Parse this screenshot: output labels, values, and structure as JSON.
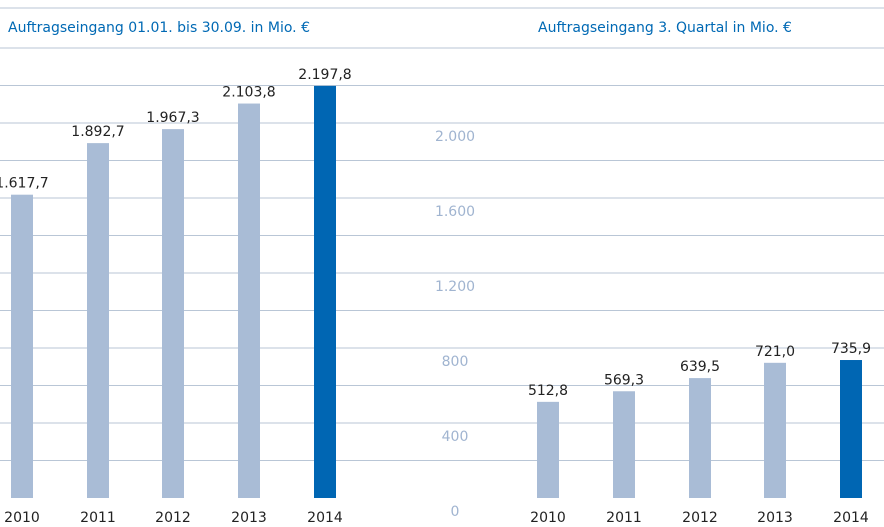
{
  "chart_data": [
    {
      "type": "bar",
      "title": "Auftragseingang 01.01. bis 30.09. in Mio. €",
      "categories": [
        "2010",
        "2011",
        "2012",
        "2013",
        "2014"
      ],
      "values": [
        1617.7,
        1892.7,
        1967.3,
        2103.8,
        2197.8
      ],
      "value_labels": [
        "1.617,7",
        "1.892,7",
        "1.967,3",
        "2.103,8",
        "2.197,8"
      ],
      "colors": [
        "#a9bcd6",
        "#a9bcd6",
        "#a9bcd6",
        "#a9bcd6",
        "#0066b3"
      ],
      "ylim": [
        0,
        2400
      ]
    },
    {
      "type": "bar",
      "title": "Auftragseingang 3. Quartal in Mio. €",
      "categories": [
        "2010",
        "2011",
        "2012",
        "2013",
        "2014"
      ],
      "values": [
        512.8,
        569.3,
        639.5,
        721.0,
        735.9
      ],
      "value_labels": [
        "512,8",
        "569,3",
        "639,5",
        "721,0",
        "735,9"
      ],
      "colors": [
        "#a9bcd6",
        "#a9bcd6",
        "#a9bcd6",
        "#a9bcd6",
        "#0066b3"
      ],
      "ylim": [
        0,
        2400
      ],
      "yticks": [
        0,
        {
          "value": 400,
          "label": "400"
        },
        {
          "value": 800,
          "label": "800"
        },
        {
          "value": 1200,
          "label": "1.200"
        },
        {
          "value": 1600,
          "label": "1.600"
        },
        {
          "value": 2000,
          "label": "2.000"
        }
      ],
      "grid_lines": [
        200,
        400,
        600,
        800,
        1000,
        1200,
        1400,
        1600,
        1800,
        2000,
        2200,
        2400
      ]
    }
  ]
}
